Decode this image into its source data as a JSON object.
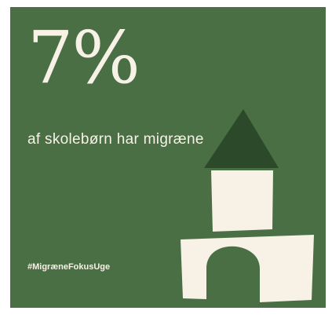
{
  "stat": {
    "value": "7%",
    "caption": "af skolebørn har migræne"
  },
  "hashtag": "#MigræneFokusUge",
  "colors": {
    "background": "#4a6f45",
    "text": "#f7f1e6",
    "roof": "#2c4a2a",
    "blocks": "#f7f1e6"
  },
  "illustration": {
    "icon": "block-tower-icon"
  }
}
